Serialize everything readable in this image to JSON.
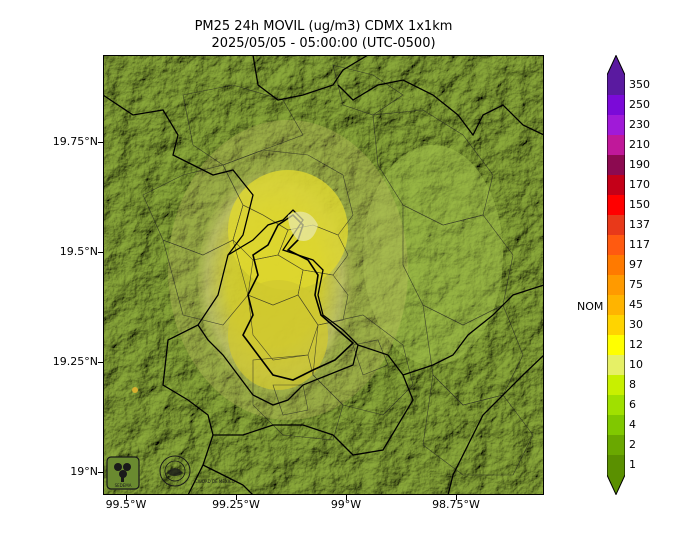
{
  "title": {
    "line1": "PM25 24h MOVIL (ug/m3) CDMX 1x1km",
    "line2": "2025/05/05 - 05:00:00 (UTC-0500)"
  },
  "axes": {
    "y_ticks": [
      "19.75°N",
      "19.5°N",
      "19.25°N",
      "19°N"
    ],
    "x_ticks": [
      "99.5°W",
      "99.25°W",
      "99°W",
      "98.75°W"
    ]
  },
  "colorbar": {
    "labels": [
      "350",
      "250",
      "230",
      "210",
      "190",
      "170",
      "150",
      "137",
      "117",
      "97",
      "75",
      "45",
      "30",
      "12",
      "10",
      "8",
      "6",
      "4",
      "2",
      "1"
    ],
    "colors": [
      "#5a1aa0",
      "#7b0ad8",
      "#a01ad8",
      "#c0189a",
      "#8c0a50",
      "#c40018",
      "#ff0000",
      "#e8391a",
      "#ff5a10",
      "#ff7a00",
      "#ff9a00",
      "#ffb400",
      "#ffd400",
      "#ffff00",
      "#e6f066",
      "#c8f000",
      "#a0e000",
      "#80c800",
      "#6aa800",
      "#5a9000"
    ],
    "reference_label": "NOM"
  },
  "logos": {
    "sedema": "SEDEMA",
    "cdmx": "CIUDAD DE MÉXICO"
  }
}
